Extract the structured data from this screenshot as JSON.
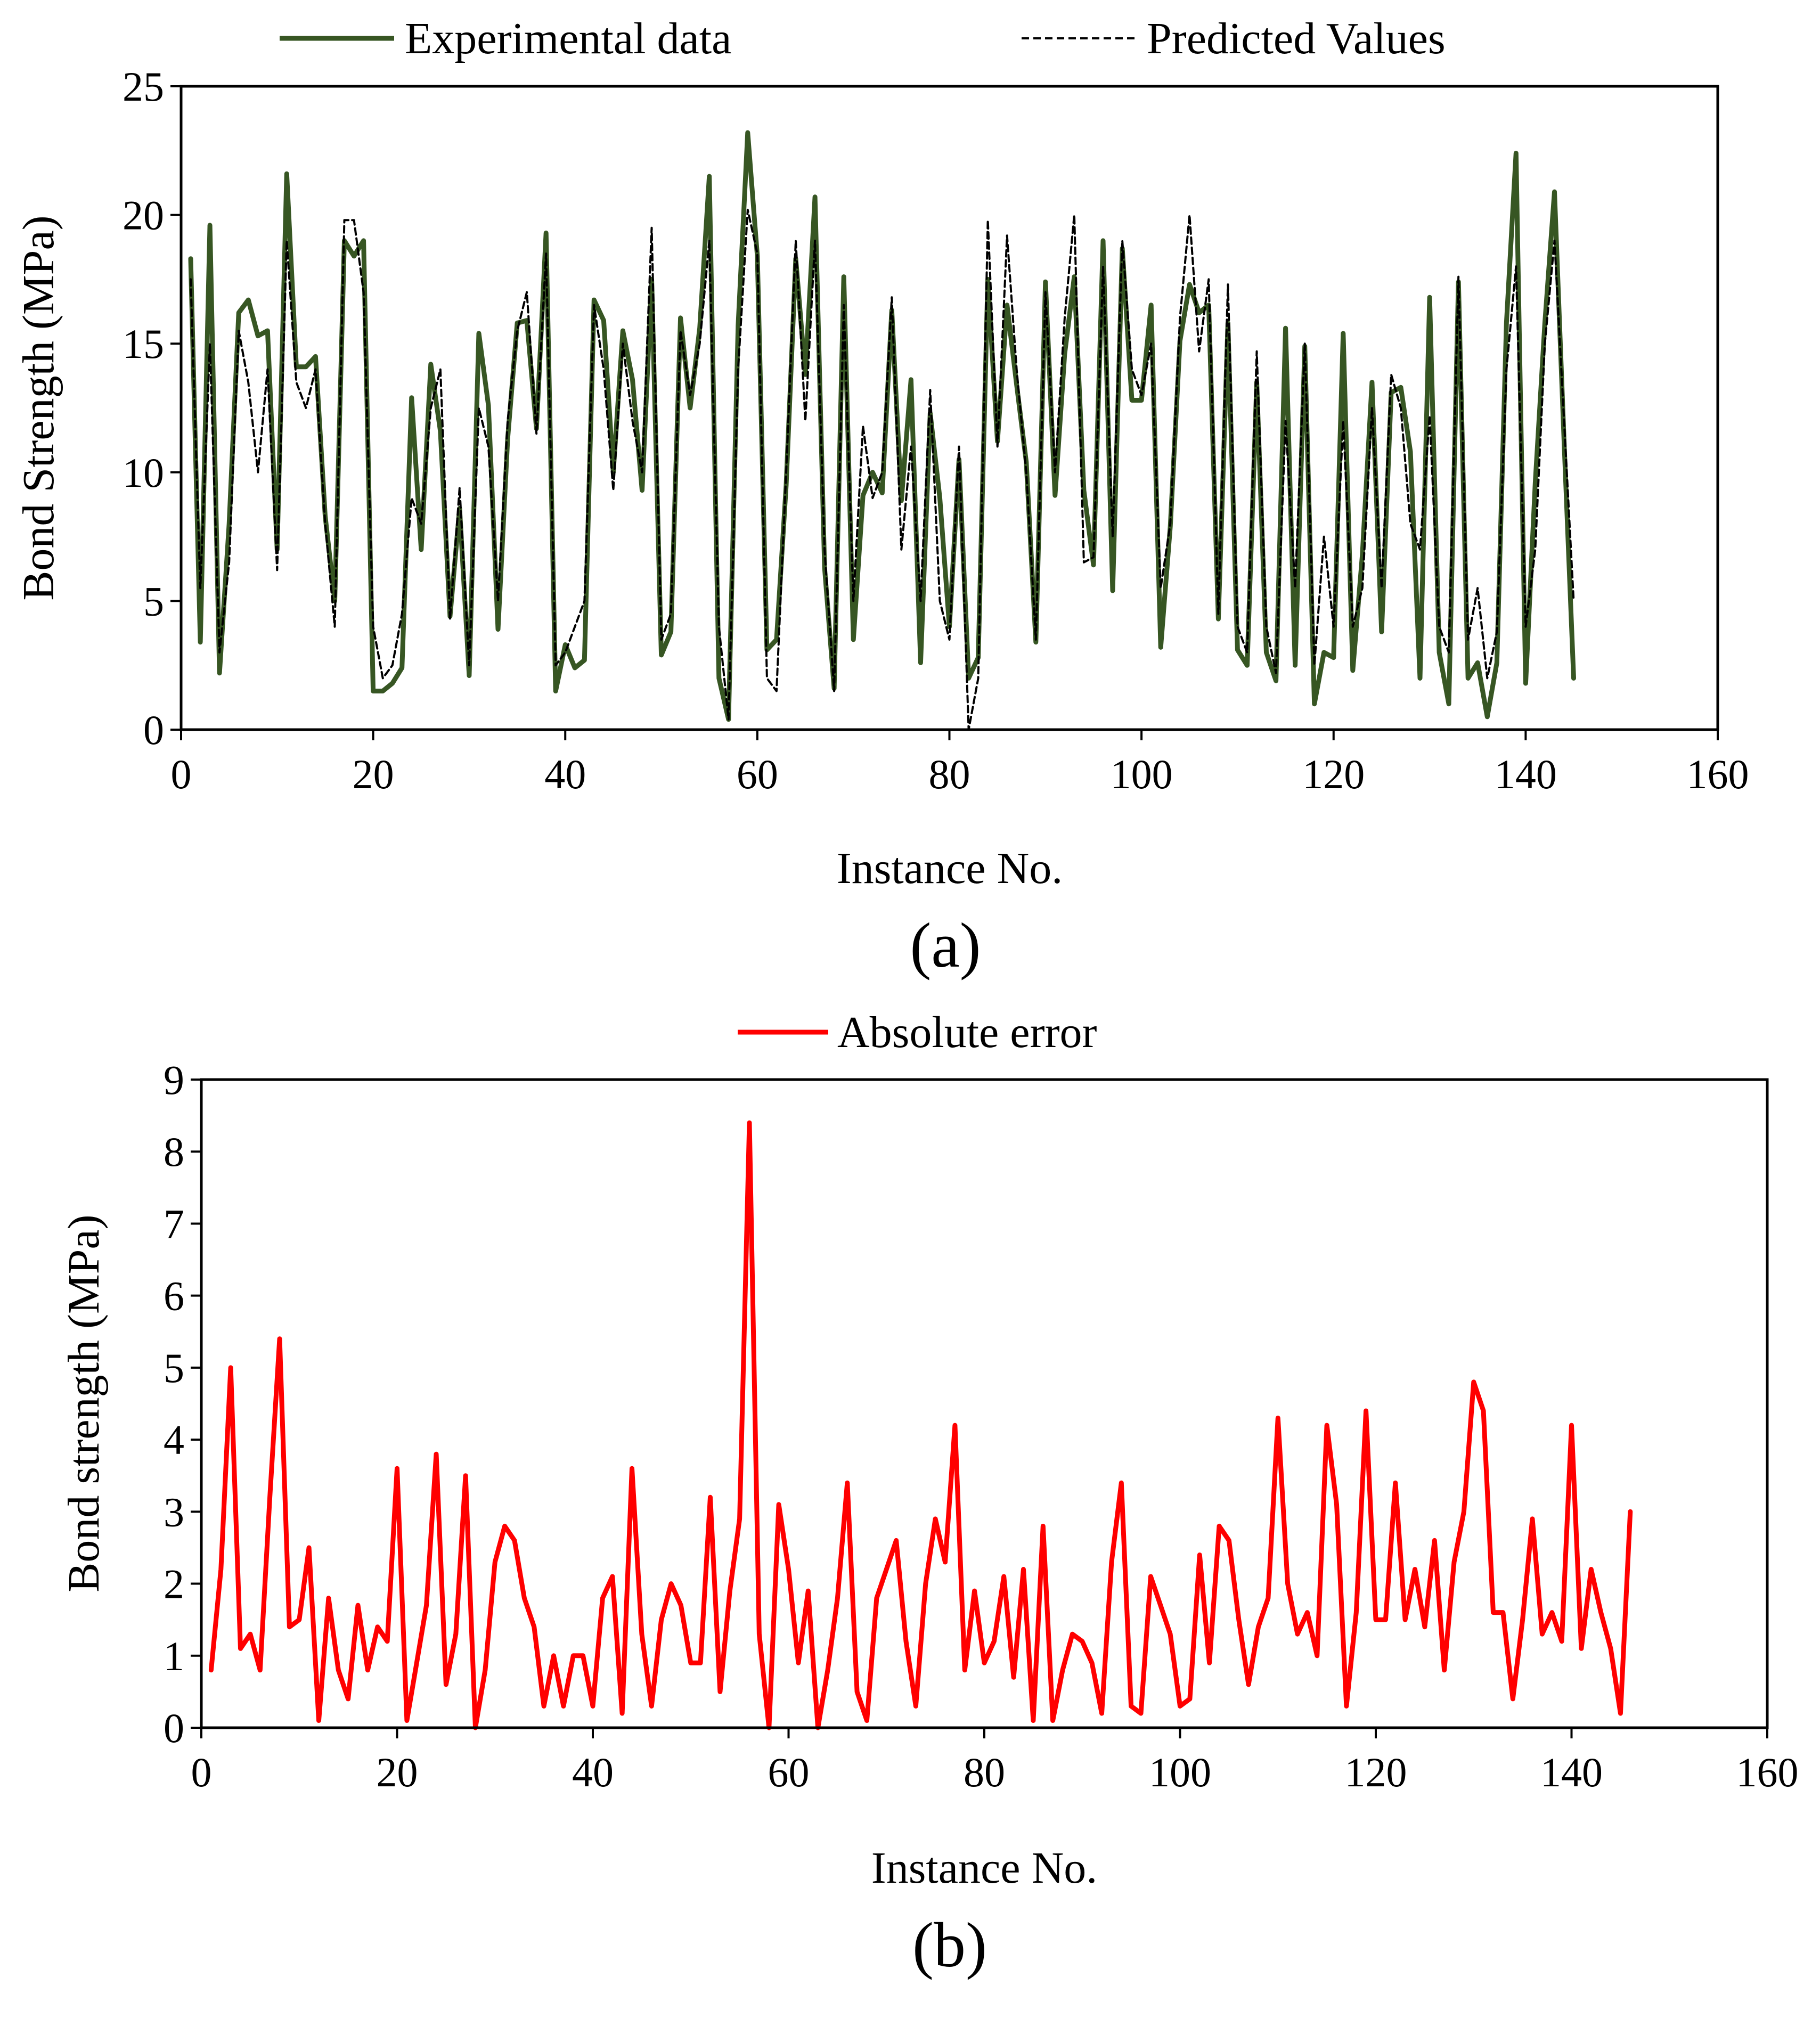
{
  "chart_data": [
    {
      "id": "a",
      "type": "line",
      "caption": "(a)",
      "xlabel": "Instance No.",
      "ylabel": "Bond  Strength (MPa)",
      "xlim": [
        0,
        160
      ],
      "ylim": [
        0,
        25
      ],
      "xticks": [
        0,
        20,
        40,
        60,
        80,
        100,
        120,
        140,
        160
      ],
      "yticks": [
        0,
        5,
        10,
        15,
        20,
        25
      ],
      "grid": false,
      "legend_position": "top",
      "series": [
        {
          "name": "Experimental data",
          "color": "#375623",
          "style": "solid",
          "values": [
            18.3,
            3.4,
            19.6,
            2.2,
            8.0,
            16.2,
            16.7,
            15.3,
            15.5,
            7.0,
            21.6,
            14.1,
            14.1,
            14.5,
            8.3,
            5.0,
            19.0,
            18.4,
            19.0,
            1.5,
            1.5,
            1.8,
            2.4,
            12.9,
            7.0,
            14.2,
            11.6,
            4.4,
            8.6,
            2.1,
            15.4,
            12.6,
            3.9,
            11.3,
            15.8,
            15.9,
            11.7,
            19.3,
            1.5,
            3.3,
            2.4,
            2.7,
            16.7,
            15.9,
            10.0,
            15.5,
            13.6,
            9.3,
            17.5,
            2.9,
            3.8,
            16.0,
            12.5,
            15.6,
            21.5,
            2.0,
            0.4,
            15.7,
            23.2,
            18.4,
            3.1,
            3.5,
            9.5,
            18.3,
            13.8,
            20.7,
            6.3,
            1.6,
            17.6,
            3.5,
            9.1,
            10.0,
            9.2,
            16.3,
            8.9,
            13.6,
            2.6,
            12.3,
            9.0,
            4.0,
            10.5,
            2.0,
            2.8,
            17.5,
            11.2,
            16.5,
            13.4,
            10.4,
            3.4,
            17.4,
            9.1,
            14.6,
            17.6,
            9.3,
            6.4,
            19.0,
            5.4,
            18.7,
            12.8,
            12.8,
            16.5,
            3.2,
            7.9,
            15.1,
            17.3,
            16.2,
            16.5,
            4.3,
            15.8,
            3.1,
            2.5,
            13.5,
            3.0,
            1.9,
            15.6,
            2.5,
            14.9,
            1.0,
            3.0,
            2.8,
            15.4,
            2.3,
            6.8,
            13.5,
            3.8,
            13.1,
            13.3,
            10.8,
            2.0,
            16.8,
            3.0,
            1.0,
            17.4,
            2.0,
            2.6,
            0.5,
            2.6,
            15.8,
            22.4,
            1.8,
            9.6,
            15.8,
            20.9,
            11.2,
            2.0
          ]
        },
        {
          "name": "Predicted Values",
          "color": "#000000",
          "style": "dashed",
          "values": [
            17.5,
            5.5,
            15.0,
            3.0,
            6.5,
            15.5,
            13.5,
            10.0,
            14.0,
            6.2,
            19.0,
            13.5,
            12.5,
            14.0,
            8.0,
            4.0,
            19.8,
            19.8,
            17.0,
            4.0,
            2.0,
            2.5,
            4.5,
            9.0,
            8.0,
            12.5,
            14.0,
            4.3,
            9.4,
            2.5,
            12.5,
            11.0,
            5.0,
            12.0,
            15.5,
            17.0,
            11.5,
            18.5,
            2.5,
            3.0,
            4.0,
            5.0,
            16.5,
            14.0,
            9.3,
            15.0,
            12.0,
            10.0,
            19.5,
            3.5,
            4.5,
            15.5,
            13.0,
            15.0,
            19.0,
            4.0,
            0.4,
            14.0,
            20.2,
            18.5,
            2.0,
            1.5,
            10.0,
            19.0,
            12.0,
            19.0,
            7.0,
            1.5,
            16.5,
            5.0,
            11.8,
            9.0,
            10.0,
            16.8,
            7.0,
            11.0,
            5.0,
            13.2,
            5.0,
            3.5,
            11.0,
            0.0,
            2.0,
            19.8,
            11.0,
            19.2,
            14.0,
            10.0,
            3.5,
            17.0,
            10.0,
            16.0,
            20.0,
            6.5,
            6.7,
            18.0,
            7.5,
            19.0,
            14.0,
            13.0,
            15.0,
            5.5,
            8.0,
            16.0,
            20.0,
            14.7,
            17.5,
            4.5,
            17.3,
            4.0,
            3.0,
            14.7,
            4.0,
            2.2,
            12.0,
            5.5,
            15.0,
            2.5,
            7.5,
            4.0,
            12.0,
            4.0,
            5.5,
            12.5,
            5.5,
            13.8,
            12.5,
            8.0,
            7.0,
            12.2,
            4.0,
            3.0,
            17.6,
            3.5,
            5.5,
            2.0,
            3.8,
            14.0,
            18.0,
            4.0,
            7.0,
            15.0,
            19.0,
            12.0,
            5.0
          ]
        }
      ]
    },
    {
      "id": "b",
      "type": "line",
      "caption": "(b)",
      "xlabel": "Instance No.",
      "ylabel": "Bond strength (MPa)",
      "xlim": [
        0,
        160
      ],
      "ylim": [
        0,
        9
      ],
      "xticks": [
        0,
        20,
        40,
        60,
        80,
        100,
        120,
        140,
        160
      ],
      "yticks": [
        0,
        1,
        2,
        3,
        4,
        5,
        6,
        7,
        8,
        9
      ],
      "grid": false,
      "legend_position": "top",
      "series": [
        {
          "name": "Absolute error",
          "color": "#ff0000",
          "style": "solid",
          "values": [
            0.8,
            2.2,
            5.0,
            1.1,
            1.3,
            0.8,
            3.2,
            5.4,
            1.4,
            1.5,
            2.5,
            0.1,
            1.8,
            0.8,
            0.4,
            1.7,
            0.8,
            1.4,
            1.2,
            3.6,
            0.1,
            0.9,
            1.7,
            3.8,
            0.6,
            1.3,
            3.5,
            0.0,
            0.8,
            2.3,
            2.8,
            2.6,
            1.8,
            1.4,
            0.3,
            1.0,
            0.3,
            1.0,
            1.0,
            0.3,
            1.8,
            2.1,
            0.2,
            3.6,
            1.3,
            0.3,
            1.5,
            2.0,
            1.7,
            0.9,
            0.9,
            3.2,
            0.5,
            1.9,
            2.9,
            8.4,
            1.3,
            0.0,
            3.1,
            2.2,
            0.9,
            1.9,
            0.0,
            0.8,
            1.8,
            3.4,
            0.5,
            0.1,
            1.8,
            2.2,
            2.6,
            1.2,
            0.3,
            2.0,
            2.9,
            2.3,
            4.2,
            0.8,
            1.9,
            0.9,
            1.2,
            2.1,
            0.7,
            2.2,
            0.1,
            2.8,
            0.1,
            0.8,
            1.3,
            1.2,
            0.9,
            0.2,
            2.3,
            3.4,
            0.3,
            0.2,
            2.1,
            1.7,
            1.3,
            0.3,
            0.4,
            2.4,
            0.9,
            2.8,
            2.6,
            1.5,
            0.6,
            1.4,
            1.8,
            4.3,
            2.0,
            1.3,
            1.6,
            1.0,
            4.2,
            3.1,
            0.3,
            1.6,
            4.4,
            1.5,
            1.5,
            3.4,
            1.5,
            2.2,
            1.4,
            2.6,
            0.8,
            2.3,
            3.0,
            4.8,
            4.4,
            1.6,
            1.6,
            0.4,
            1.5,
            2.9,
            1.3,
            1.6,
            1.2,
            4.2,
            1.1,
            2.2,
            1.6,
            1.1,
            0.2,
            3.0
          ]
        }
      ]
    }
  ]
}
